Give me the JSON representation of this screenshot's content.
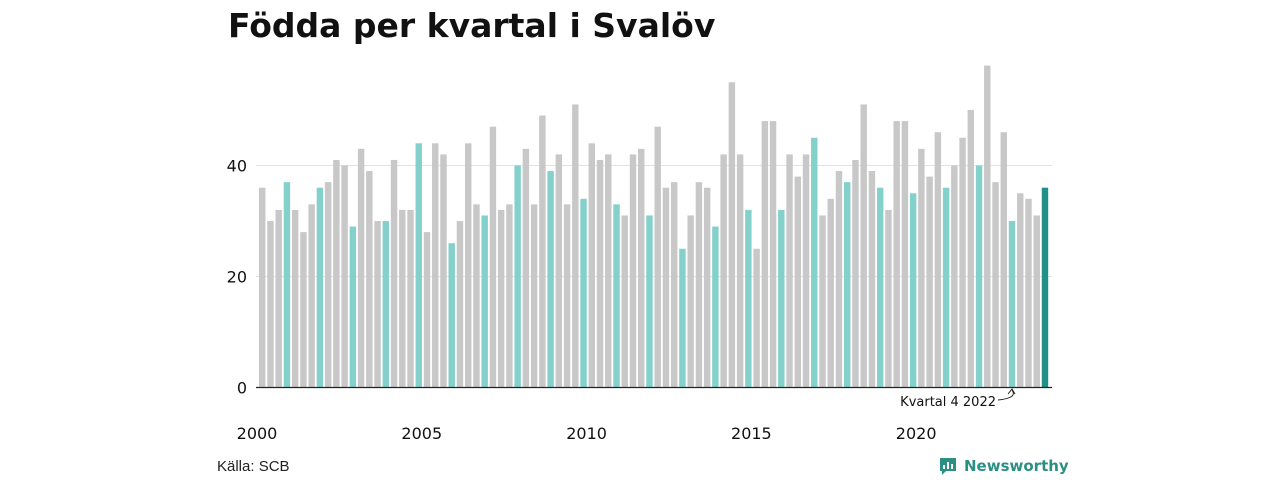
{
  "chart_data": {
    "type": "bar",
    "title": "Födda per kvartal i Svalöv",
    "xlabel": "",
    "ylabel": "",
    "ylim": [
      0,
      58
    ],
    "yticks": [
      "0",
      "20",
      "40"
    ],
    "xtick_labels": [
      "2000",
      "2005",
      "2010",
      "2015",
      "2020"
    ],
    "start_year": 2000,
    "grid": true,
    "highlight_quarter": 4,
    "values": [
      36,
      30,
      32,
      37,
      32,
      28,
      33,
      36,
      37,
      41,
      40,
      29,
      43,
      39,
      30,
      30,
      41,
      32,
      32,
      44,
      28,
      44,
      42,
      26,
      30,
      44,
      33,
      31,
      47,
      32,
      33,
      40,
      43,
      33,
      49,
      39,
      42,
      33,
      51,
      34,
      44,
      41,
      42,
      33,
      31,
      42,
      43,
      31,
      47,
      36,
      37,
      25,
      31,
      37,
      36,
      29,
      42,
      55,
      42,
      32,
      25,
      48,
      48,
      32,
      42,
      38,
      42,
      45,
      31,
      34,
      39,
      37,
      41,
      51,
      39,
      36,
      32,
      48,
      48,
      35,
      43,
      38,
      46,
      36,
      40,
      45,
      50,
      40,
      58,
      37,
      46,
      30,
      35,
      34,
      31,
      36
    ],
    "annotation": "Kvartal 4 2022",
    "colors": {
      "default": "#c8c8c8",
      "q4": "#84d1cb",
      "latest": "#1f9188",
      "axis": "#222222",
      "grid": "#e2e2e2"
    }
  },
  "footer": {
    "source": "Källa: SCB",
    "brand": "Newsworthy"
  }
}
